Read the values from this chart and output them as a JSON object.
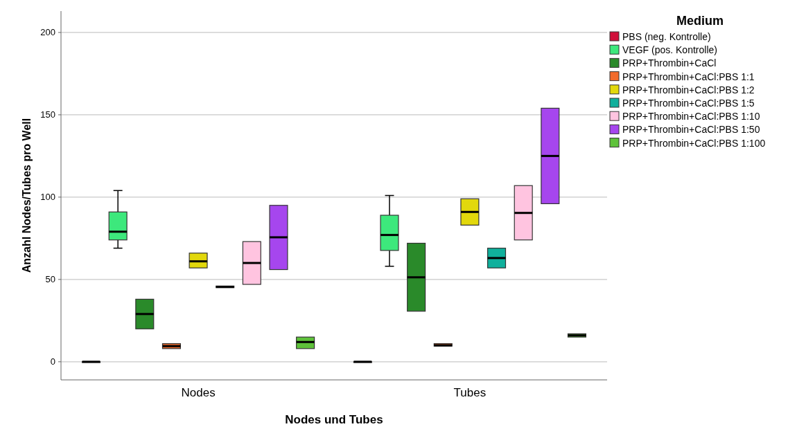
{
  "chart_data": {
    "type": "box",
    "xlabel": "Nodes und Tubes",
    "ylabel": "Anzahl Nodes/Tubes pro Well",
    "legend_title": "Medium",
    "legend": "top right",
    "grid": "y",
    "categories": [
      "Nodes",
      "Tubes"
    ],
    "ylim": [
      -11,
      213
    ],
    "yticks": [
      0,
      50,
      100,
      150,
      200
    ],
    "series": [
      {
        "name": "PBS (neg. Kontrolle)",
        "color": "#d0103a",
        "boxes": [
          {
            "low": 0,
            "q1": 0,
            "median": 0,
            "q3": 0,
            "high": 0
          },
          {
            "low": 0,
            "q1": 0,
            "median": 0,
            "q3": 0,
            "high": 0
          }
        ]
      },
      {
        "name": "VEGF (pos. Kontrolle)",
        "color": "#3de87c",
        "boxes": [
          {
            "low": 69,
            "q1": 74,
            "median": 79,
            "q3": 91,
            "high": 104
          },
          {
            "low": 58,
            "q1": 67.6,
            "median": 77,
            "q3": 89,
            "high": 101
          }
        ]
      },
      {
        "name": "PRP+Thrombin+CaCl",
        "color": "#2a8a2a",
        "boxes": [
          {
            "low": 20,
            "q1": 20,
            "median": 29,
            "q3": 38,
            "high": 38
          },
          {
            "low": 30.7,
            "q1": 30.7,
            "median": 51.3,
            "q3": 72,
            "high": 72
          }
        ]
      },
      {
        "name": "PRP+Thrombin+CaCl:PBS 1:1",
        "color": "#f26b2c",
        "boxes": [
          {
            "low": 8,
            "q1": 8,
            "median": 9.5,
            "q3": 11,
            "high": 11
          },
          {
            "low": 9.5,
            "q1": 9.5,
            "median": 10,
            "q3": 11,
            "high": 11
          }
        ]
      },
      {
        "name": "PRP+Thrombin+CaCl:PBS 1:2",
        "color": "#e2d80c",
        "boxes": [
          {
            "low": 57,
            "q1": 57,
            "median": 61,
            "q3": 66,
            "high": 66
          },
          {
            "low": 83,
            "q1": 83,
            "median": 91,
            "q3": 99,
            "high": 99
          }
        ]
      },
      {
        "name": "PRP+Thrombin+CaCl:PBS 1:5",
        "color": "#10b09c",
        "boxes": [
          {
            "low": 45,
            "q1": 45,
            "median": 45.5,
            "q3": 46,
            "high": 46
          },
          {
            "low": 57,
            "q1": 57,
            "median": 63,
            "q3": 69,
            "high": 69
          }
        ]
      },
      {
        "name": "PRP+Thrombin+CaCl:PBS 1:10",
        "color": "#ffc4e0",
        "boxes": [
          {
            "low": 47,
            "q1": 47,
            "median": 60,
            "q3": 73,
            "high": 73
          },
          {
            "low": 74,
            "q1": 74,
            "median": 90.4,
            "q3": 107,
            "high": 107
          }
        ]
      },
      {
        "name": "PRP+Thrombin+CaCl:PBS 1:50",
        "color": "#a646ee",
        "boxes": [
          {
            "low": 56,
            "q1": 56,
            "median": 75.6,
            "q3": 95,
            "high": 95
          },
          {
            "low": 96,
            "q1": 96,
            "median": 125,
            "q3": 154,
            "high": 154
          }
        ]
      },
      {
        "name": "PRP+Thrombin+CaCl:PBS 1:100",
        "color": "#5ec23a",
        "boxes": [
          {
            "low": 8,
            "q1": 8,
            "median": 12,
            "q3": 15,
            "high": 15
          },
          {
            "low": 15,
            "q1": 15,
            "median": 16,
            "q3": 17,
            "high": 17
          }
        ]
      }
    ]
  }
}
